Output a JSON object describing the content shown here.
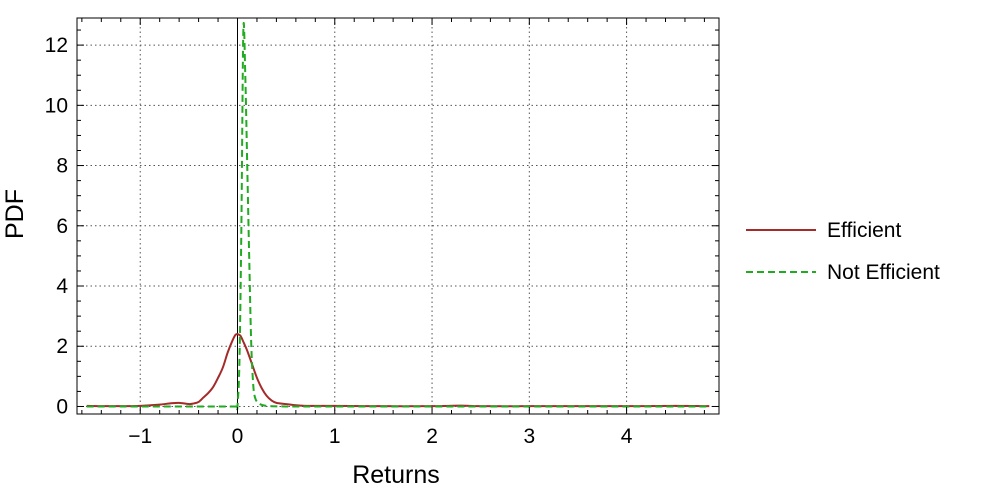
{
  "chart_data": {
    "type": "line",
    "xlabel": "Returns",
    "ylabel": "PDF",
    "xlim": [
      -1.65,
      4.95
    ],
    "ylim": [
      -0.25,
      12.9
    ],
    "x_ticks": [
      {
        "value": -1,
        "label": "−1"
      },
      {
        "value": 0,
        "label": "0"
      },
      {
        "value": 1,
        "label": "1"
      },
      {
        "value": 2,
        "label": "2"
      },
      {
        "value": 3,
        "label": "3"
      },
      {
        "value": 4,
        "label": "4"
      }
    ],
    "y_ticks": [
      {
        "value": 0,
        "label": "0"
      },
      {
        "value": 2,
        "label": "2"
      },
      {
        "value": 4,
        "label": "4"
      },
      {
        "value": 6,
        "label": "6"
      },
      {
        "value": 8,
        "label": "8"
      },
      {
        "value": 10,
        "label": "10"
      },
      {
        "value": 12,
        "label": "12"
      }
    ],
    "grid": true,
    "legend_position": "right",
    "series": [
      {
        "name": "Efficient",
        "color": "#a52a2a",
        "dash": "solid",
        "x": [
          -1.55,
          -1.3,
          -1.0,
          -0.8,
          -0.7,
          -0.6,
          -0.5,
          -0.45,
          -0.4,
          -0.35,
          -0.3,
          -0.25,
          -0.2,
          -0.15,
          -0.1,
          -0.05,
          -0.02,
          0.0,
          0.03,
          0.06,
          0.1,
          0.15,
          0.2,
          0.25,
          0.3,
          0.35,
          0.4,
          0.5,
          0.6,
          0.7,
          0.8,
          1.0,
          1.5,
          2.0,
          2.3,
          2.5,
          3.0,
          3.5,
          4.0,
          4.5,
          4.85
        ],
        "y": [
          0.02,
          0.01,
          0.02,
          0.06,
          0.1,
          0.12,
          0.08,
          0.1,
          0.15,
          0.3,
          0.45,
          0.65,
          0.95,
          1.3,
          1.8,
          2.2,
          2.38,
          2.4,
          2.35,
          2.15,
          1.85,
          1.4,
          0.95,
          0.6,
          0.35,
          0.2,
          0.12,
          0.08,
          0.04,
          0.02,
          0.02,
          0.02,
          0.01,
          0.01,
          0.03,
          0.01,
          0.01,
          0.01,
          0.01,
          0.02,
          0.01
        ]
      },
      {
        "name": "Not Efficient",
        "color": "#22aa22",
        "dash": "dashed",
        "x": [
          -1.55,
          -0.5,
          -0.05,
          -0.01,
          0.0,
          0.02,
          0.04,
          0.06,
          0.08,
          0.1,
          0.12,
          0.14,
          0.16,
          0.18,
          0.22,
          0.3,
          0.5,
          1.0,
          2.0,
          3.0,
          4.0,
          4.85
        ],
        "y": [
          0.0,
          0.0,
          0.0,
          0.0,
          0.02,
          1.5,
          6.0,
          12.5,
          11.0,
          8.0,
          5.0,
          2.2,
          0.8,
          0.3,
          0.1,
          0.02,
          0.0,
          0.0,
          0.0,
          0.0,
          0.0,
          0.0
        ]
      }
    ]
  }
}
